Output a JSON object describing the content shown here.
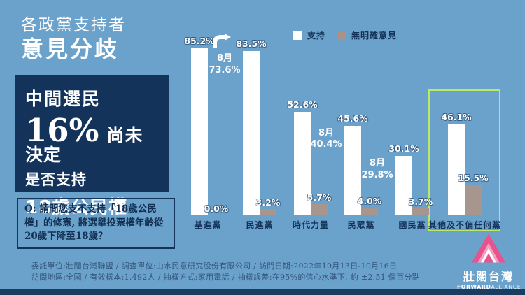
{
  "page": {
    "bg_color": "#6BA2CB",
    "navy_color": "#14335A",
    "highlight_color": "#BCE868",
    "logo_pink": "#E8538D"
  },
  "header": {
    "title_line1": "各政黨支持者",
    "title_line2": "意見分歧"
  },
  "callout": {
    "line1": "中間選民",
    "big_number": "16%",
    "line2_rest": "尚未決定",
    "line3": "是否支持",
    "line4": "18歲公民權"
  },
  "question": {
    "text": "Q: 請問您支不支持「18歲公民權」的修憲, 將選舉投票權年齡從20歲下降至18歲？"
  },
  "legend": [
    {
      "label": "支持",
      "color": "#FFFFFF"
    },
    {
      "label": "無明確意見",
      "color": "#AC9186"
    }
  ],
  "chart_data": {
    "type": "bar",
    "title": "各政黨支持者意見分歧",
    "categories": [
      "基進黨",
      "民進黨",
      "時代力量",
      "民眾黨",
      "國民黨",
      "其他及不偏任何黨"
    ],
    "series": [
      {
        "name": "支持",
        "color": "#FFFFFF",
        "values": [
          85.2,
          83.5,
          52.6,
          45.6,
          30.1,
          46.1
        ]
      },
      {
        "name": "無明確意見",
        "color": "#A6968D",
        "values": [
          0.0,
          3.2,
          5.7,
          4.0,
          3.7,
          15.5
        ]
      }
    ],
    "value_labels": [
      [
        "85.2%",
        "83.5%",
        "52.6%",
        "45.6%",
        "30.1%",
        "46.1%"
      ],
      [
        "0.0%",
        "3.2%",
        "5.7%",
        "4.0%",
        "3.7%",
        "15.5%"
      ]
    ],
    "annotations": [
      {
        "category_index": 1,
        "line1": "8月",
        "line2": "73.6%",
        "arrow": true
      },
      {
        "category_index": 3,
        "line1": "8月",
        "line2": "40.4%",
        "arrow": false
      },
      {
        "category_index": 4,
        "line1": "8月",
        "line2": "29.8%",
        "arrow": false
      }
    ],
    "highlight_category_index": 5,
    "ylim": [
      0,
      100
    ],
    "grid": false,
    "legend_position": "top-right"
  },
  "footer": {
    "line1": "委託單位:壯闊台灣聯盟 / 調查單位:山水民意研究股份有限公司 / 訪問日期:2022年10月13日-10月16日",
    "line2": "訪問地區:全國 / 有效樣本:1,492人 / 抽樣方式:家用電話 / 抽樣誤差:在95%的信心水準下, 約 ±2.51 個百分點"
  },
  "logo": {
    "name_zh": "壯闊台灣",
    "name_en_bold": "FORWARD",
    "name_en_light": "ALLIANCE"
  }
}
